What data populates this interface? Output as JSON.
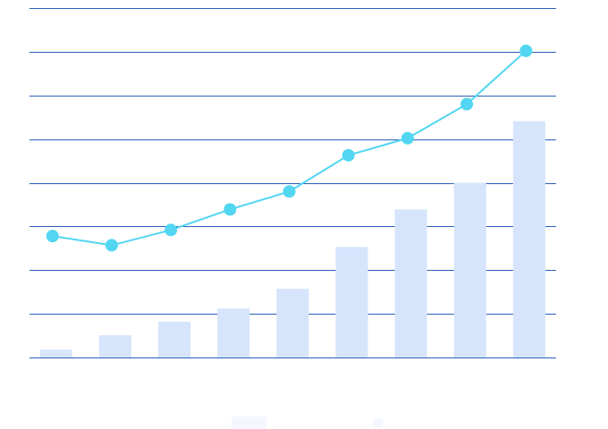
{
  "chart_data": {
    "type": "bar",
    "title": "",
    "xlabel": "",
    "ylabel": "",
    "ylim": [
      0,
      8
    ],
    "grid": true,
    "gridlines": 9,
    "legend": "bottom-center",
    "series": [
      {
        "type": "bar",
        "color": "#d6e4fc",
        "values": [
          0.18,
          0.51,
          0.82,
          1.12,
          1.57,
          2.53,
          3.39,
          4.0,
          5.41
        ]
      },
      {
        "type": "line",
        "color": "#52d6f2",
        "values": [
          2.78,
          2.57,
          2.92,
          3.39,
          3.8,
          4.63,
          5.02,
          5.8,
          7.02
        ]
      }
    ],
    "colors": {
      "grid": "#2a5fb8",
      "legend_bar": "#f4f7ff",
      "legend_line": "#f4f7ff"
    }
  }
}
